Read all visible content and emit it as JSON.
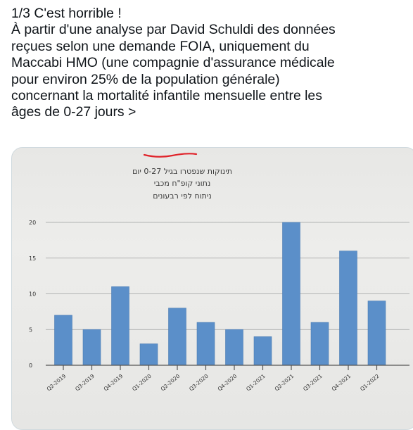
{
  "tweet": {
    "lines": [
      "1/3 C'est horrible !",
      "À partir d'une analyse par David Schuldi des données",
      "reçues selon une demande FOIA, uniquement du",
      "Maccabi HMO (une compagnie d'assurance médicale",
      "pour environ 25% de la population générale)",
      "concernant la mortalité infantile mensuelle entre les",
      "âges de 0-27 jours >"
    ]
  },
  "chart_data": {
    "type": "bar",
    "title": [
      "תינוקות שנפטרו בגיל 0-27 יום",
      "נתוני קופ\"ח מכבי",
      "ניתוח לפי רבעונים"
    ],
    "categories": [
      "Q2-2019",
      "Q3-2019",
      "Q4-2019",
      "Q1-2020",
      "Q2-2020",
      "Q3-2020",
      "Q4-2020",
      "Q1-2021",
      "Q2-2021",
      "Q3-2021",
      "Q4-2021",
      "Q1-2022"
    ],
    "values": [
      7,
      5,
      11,
      3,
      8,
      6,
      5,
      4,
      20,
      6,
      16,
      9
    ],
    "ylim": [
      0,
      20
    ],
    "yticks": [
      "0",
      "5",
      "10",
      "15",
      "20"
    ],
    "grid": true,
    "bar_color": "#5b8fc9",
    "annotation_color": "#e0242b"
  }
}
